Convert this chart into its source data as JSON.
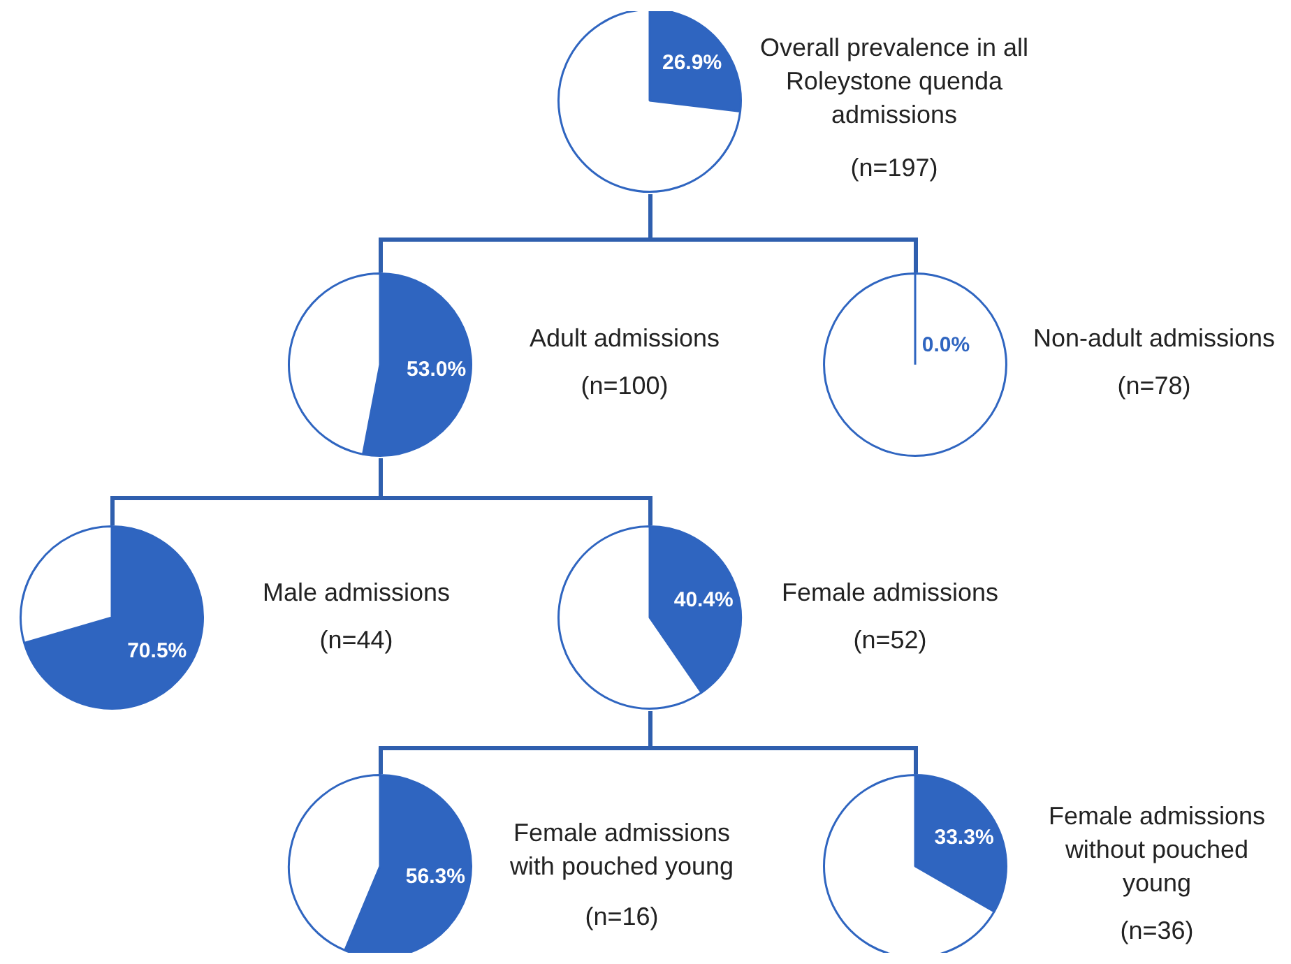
{
  "chart_data": [
    {
      "type": "pie",
      "title": "Overall prevalence in all Roleystone quenda admissions",
      "subtitle": "(n=197)",
      "categories": [
        null,
        null
      ],
      "values": [
        26.9,
        73.1
      ],
      "colors": [
        "#2f65c0",
        "#ffffff"
      ],
      "value_labels": [
        "26.9%",
        null
      ]
    },
    {
      "type": "pie",
      "title": "Adult admissions",
      "subtitle": "(n=100)",
      "categories": [
        null,
        null
      ],
      "values": [
        53.0,
        47.0
      ],
      "colors": [
        "#2f65c0",
        "#ffffff"
      ],
      "value_labels": [
        "53.0%",
        null
      ]
    },
    {
      "type": "pie",
      "title": "Non-adult admissions",
      "subtitle": "(n=78)",
      "categories": [
        null,
        null
      ],
      "values": [
        0.0,
        100
      ],
      "colors": [
        "#2f65c0",
        "#ffffff"
      ],
      "value_labels": [
        "0.0%",
        null
      ]
    },
    {
      "type": "pie",
      "title": "Male admissions",
      "subtitle": "(n=44)",
      "categories": [
        null,
        null
      ],
      "values": [
        70.5,
        29.5
      ],
      "colors": [
        "#2f65c0",
        "#ffffff"
      ],
      "value_labels": [
        "70.5%",
        null
      ]
    },
    {
      "type": "pie",
      "title": "Female admissions",
      "subtitle": "(n=52)",
      "categories": [
        null,
        null
      ],
      "values": [
        40.4,
        59.6
      ],
      "colors": [
        "#2f65c0",
        "#ffffff"
      ],
      "value_labels": [
        "40.4%",
        null
      ]
    },
    {
      "type": "pie",
      "title": "Female admissions with pouched young",
      "subtitle": "(n=16)",
      "categories": [
        null,
        null
      ],
      "values": [
        56.3,
        43.7
      ],
      "colors": [
        "#2f65c0",
        "#ffffff"
      ],
      "value_labels": [
        "56.3%",
        null
      ]
    },
    {
      "type": "pie",
      "title": "Female admissions without pouched young",
      "subtitle": "(n=36)",
      "categories": [
        null,
        null
      ],
      "values": [
        33.3,
        66.7
      ],
      "colors": [
        "#2f65c0",
        "#ffffff"
      ],
      "value_labels": [
        "33.3%",
        null
      ]
    }
  ]
}
